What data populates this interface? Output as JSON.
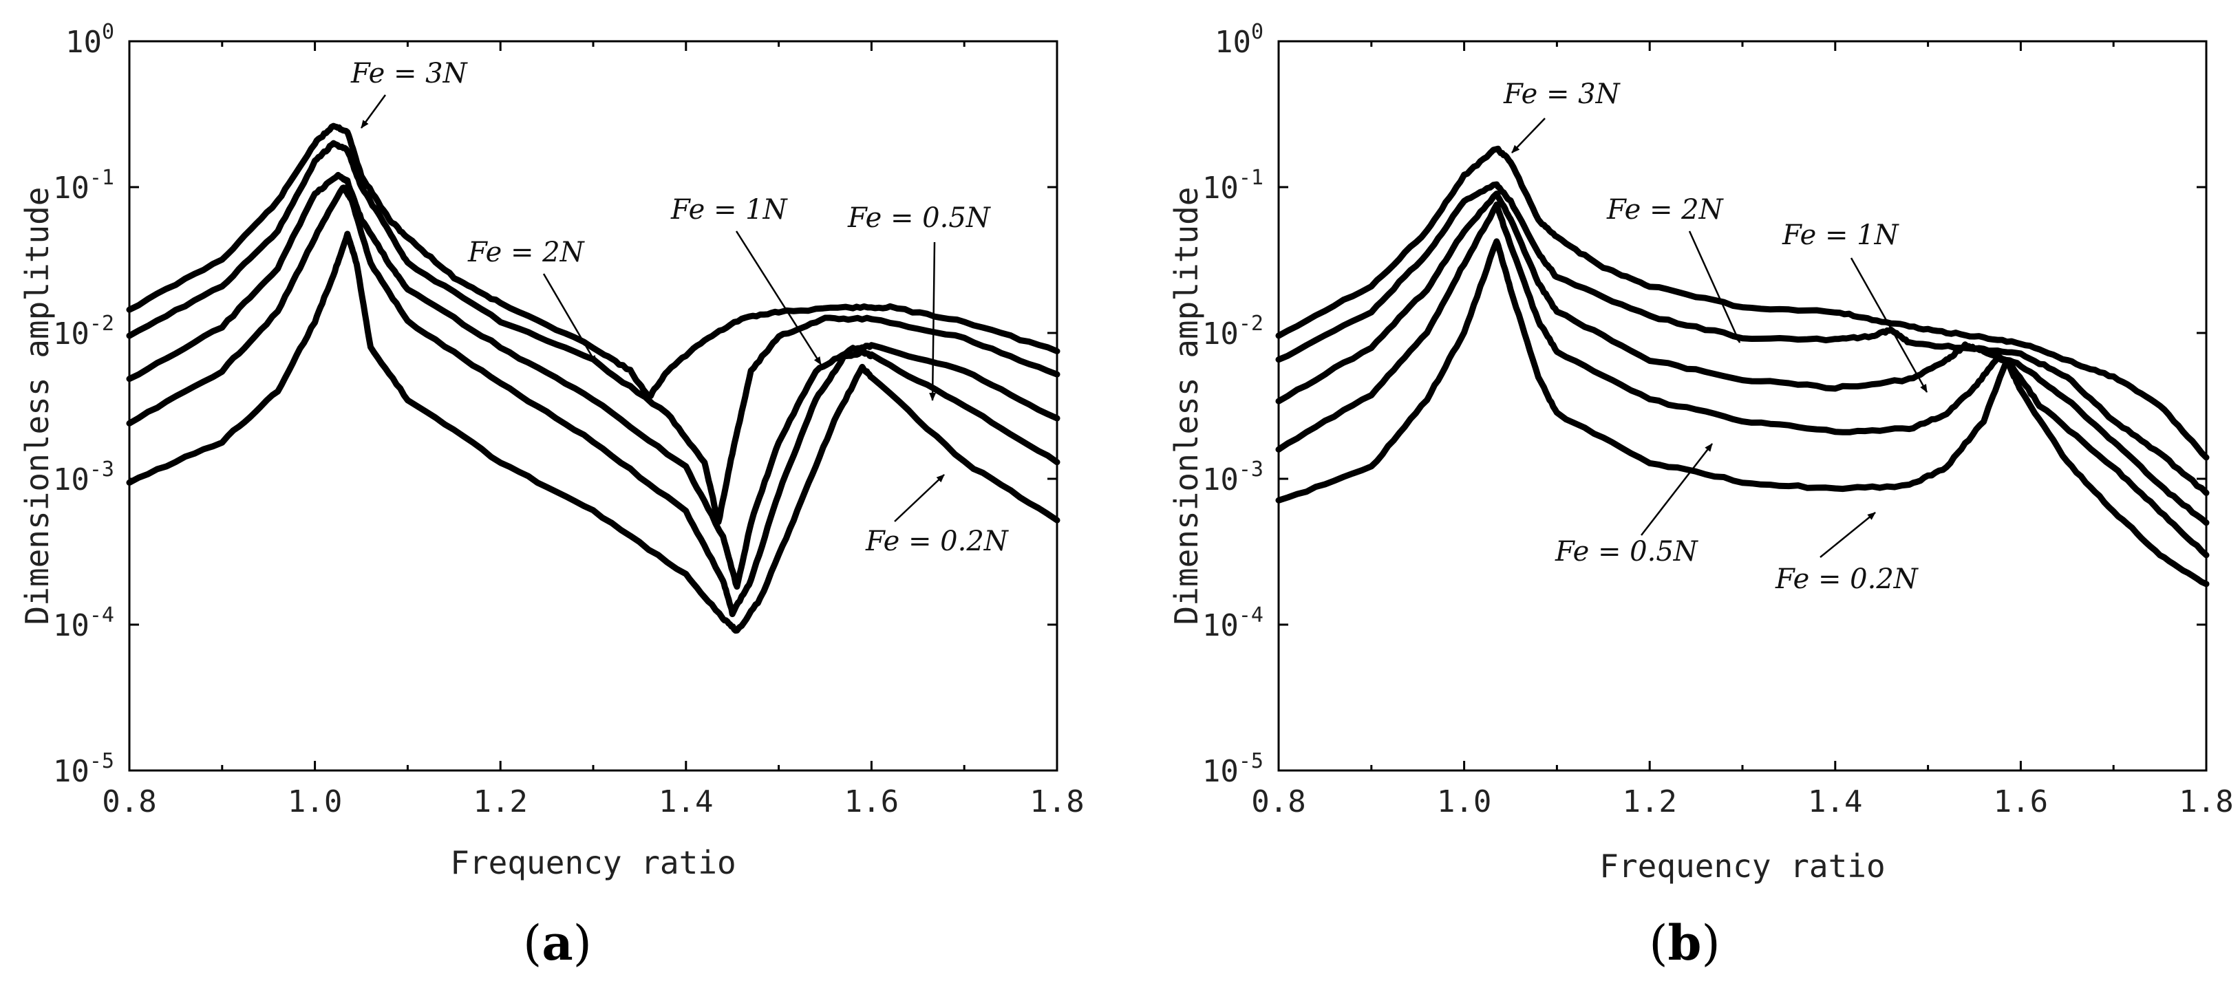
{
  "chart_data": [
    {
      "type": "line",
      "panel": "a",
      "panel_label": "a",
      "xlabel": "Frequency ratio",
      "ylabel": "Dimensionless amplitude",
      "xlim": [
        0.8,
        1.8
      ],
      "ylim_log10": [
        -5,
        0
      ],
      "yscale": "log",
      "x_ticks": [
        "0.8",
        "1.0",
        "1.2",
        "1.4",
        "1.6",
        "1.8"
      ],
      "y_ticks": [
        {
          "base": "10",
          "exp": "0"
        },
        {
          "base": "10",
          "exp": "-1"
        },
        {
          "base": "10",
          "exp": "-2"
        },
        {
          "base": "10",
          "exp": "-3"
        },
        {
          "base": "10",
          "exp": "-4"
        },
        {
          "base": "10",
          "exp": "-5"
        }
      ],
      "series": [
        {
          "name": "Fe = 3N",
          "points": [
            [
              0.8,
              0.0145
            ],
            [
              0.9,
              0.032
            ],
            [
              0.96,
              0.08
            ],
            [
              1.0,
              0.2
            ],
            [
              1.02,
              0.265
            ],
            [
              1.035,
              0.24
            ],
            [
              1.05,
              0.12
            ],
            [
              1.08,
              0.06
            ],
            [
              1.1,
              0.045
            ],
            [
              1.15,
              0.024
            ],
            [
              1.2,
              0.016
            ],
            [
              1.3,
              0.008
            ],
            [
              1.34,
              0.0055
            ],
            [
              1.36,
              0.0036
            ],
            [
              1.38,
              0.0055
            ],
            [
              1.42,
              0.009
            ],
            [
              1.46,
              0.0125
            ],
            [
              1.5,
              0.014
            ],
            [
              1.58,
              0.015
            ],
            [
              1.62,
              0.015
            ],
            [
              1.7,
              0.012
            ],
            [
              1.8,
              0.0075
            ]
          ]
        },
        {
          "name": "Fe = 2N",
          "points": [
            [
              0.8,
              0.0097
            ],
            [
              0.9,
              0.021
            ],
            [
              0.96,
              0.05
            ],
            [
              1.0,
              0.15
            ],
            [
              1.02,
              0.2
            ],
            [
              1.035,
              0.18
            ],
            [
              1.05,
              0.1
            ],
            [
              1.08,
              0.05
            ],
            [
              1.1,
              0.03
            ],
            [
              1.2,
              0.012
            ],
            [
              1.3,
              0.0065
            ],
            [
              1.38,
              0.0028
            ],
            [
              1.42,
              0.0013
            ],
            [
              1.435,
              0.0005
            ],
            [
              1.45,
              0.0015
            ],
            [
              1.47,
              0.0055
            ],
            [
              1.5,
              0.0095
            ],
            [
              1.55,
              0.0125
            ],
            [
              1.6,
              0.0125
            ],
            [
              1.7,
              0.0092
            ],
            [
              1.8,
              0.0052
            ]
          ]
        },
        {
          "name": "Fe = 1N",
          "points": [
            [
              0.8,
              0.0048
            ],
            [
              0.9,
              0.011
            ],
            [
              0.96,
              0.028
            ],
            [
              1.0,
              0.09
            ],
            [
              1.025,
              0.12
            ],
            [
              1.035,
              0.11
            ],
            [
              1.05,
              0.06
            ],
            [
              1.08,
              0.03
            ],
            [
              1.1,
              0.02
            ],
            [
              1.2,
              0.008
            ],
            [
              1.3,
              0.0035
            ],
            [
              1.4,
              0.0012
            ],
            [
              1.44,
              0.0004
            ],
            [
              1.455,
              0.00018
            ],
            [
              1.47,
              0.0005
            ],
            [
              1.5,
              0.0018
            ],
            [
              1.54,
              0.0055
            ],
            [
              1.58,
              0.0078
            ],
            [
              1.6,
              0.0082
            ],
            [
              1.7,
              0.0055
            ],
            [
              1.8,
              0.0026
            ]
          ]
        },
        {
          "name": "Fe = 0.5N",
          "points": [
            [
              0.8,
              0.0024
            ],
            [
              0.9,
              0.0055
            ],
            [
              0.96,
              0.014
            ],
            [
              1.0,
              0.045
            ],
            [
              1.03,
              0.1
            ],
            [
              1.04,
              0.08
            ],
            [
              1.06,
              0.03
            ],
            [
              1.1,
              0.012
            ],
            [
              1.2,
              0.0045
            ],
            [
              1.3,
              0.0018
            ],
            [
              1.4,
              0.0006
            ],
            [
              1.44,
              0.0002
            ],
            [
              1.45,
              0.00012
            ],
            [
              1.47,
              0.0002
            ],
            [
              1.5,
              0.0008
            ],
            [
              1.54,
              0.0035
            ],
            [
              1.57,
              0.0068
            ],
            [
              1.59,
              0.0074
            ],
            [
              1.6,
              0.007
            ],
            [
              1.7,
              0.0032
            ],
            [
              1.8,
              0.0013
            ]
          ]
        },
        {
          "name": "Fe = 0.2N",
          "points": [
            [
              0.8,
              0.00095
            ],
            [
              0.9,
              0.0018
            ],
            [
              0.96,
              0.004
            ],
            [
              1.0,
              0.012
            ],
            [
              1.02,
              0.025
            ],
            [
              1.035,
              0.048
            ],
            [
              1.045,
              0.03
            ],
            [
              1.06,
              0.008
            ],
            [
              1.1,
              0.0035
            ],
            [
              1.2,
              0.0013
            ],
            [
              1.3,
              0.0006
            ],
            [
              1.4,
              0.00022
            ],
            [
              1.44,
              0.00011
            ],
            [
              1.455,
              9e-05
            ],
            [
              1.48,
              0.00015
            ],
            [
              1.52,
              0.0006
            ],
            [
              1.56,
              0.0025
            ],
            [
              1.59,
              0.0058
            ],
            [
              1.6,
              0.005
            ],
            [
              1.7,
              0.0013
            ],
            [
              1.8,
              0.00052
            ]
          ]
        }
      ],
      "annotations": [
        {
          "text": "Fe = 3N"
        },
        {
          "text": "Fe = 2N"
        },
        {
          "text": "Fe = 1N"
        },
        {
          "text": "Fe = 0.5N"
        },
        {
          "text": "Fe = 0.2N"
        }
      ]
    },
    {
      "type": "line",
      "panel": "b",
      "panel_label": "b",
      "xlabel": "Frequency ratio",
      "ylabel": "Dimensionless amplitude",
      "xlim": [
        0.8,
        1.8
      ],
      "ylim_log10": [
        -5,
        0
      ],
      "yscale": "log",
      "x_ticks": [
        "0.8",
        "1.0",
        "1.2",
        "1.4",
        "1.6",
        "1.8"
      ],
      "y_ticks": [
        {
          "base": "10",
          "exp": "0"
        },
        {
          "base": "10",
          "exp": "-1"
        },
        {
          "base": "10",
          "exp": "-2"
        },
        {
          "base": "10",
          "exp": "-3"
        },
        {
          "base": "10",
          "exp": "-4"
        },
        {
          "base": "10",
          "exp": "-5"
        }
      ],
      "series": [
        {
          "name": "Fe = 3N",
          "points": [
            [
              0.8,
              0.0097
            ],
            [
              0.9,
              0.021
            ],
            [
              0.96,
              0.05
            ],
            [
              1.0,
              0.12
            ],
            [
              1.035,
              0.185
            ],
            [
              1.05,
              0.15
            ],
            [
              1.08,
              0.06
            ],
            [
              1.1,
              0.045
            ],
            [
              1.15,
              0.028
            ],
            [
              1.2,
              0.021
            ],
            [
              1.3,
              0.015
            ],
            [
              1.4,
              0.014
            ],
            [
              1.45,
              0.012
            ],
            [
              1.5,
              0.0105
            ],
            [
              1.55,
              0.0095
            ],
            [
              1.6,
              0.0085
            ],
            [
              1.65,
              0.0065
            ],
            [
              1.7,
              0.005
            ],
            [
              1.75,
              0.0032
            ],
            [
              1.8,
              0.0014
            ]
          ]
        },
        {
          "name": "Fe = 2N",
          "points": [
            [
              0.8,
              0.0065
            ],
            [
              0.9,
              0.014
            ],
            [
              0.96,
              0.035
            ],
            [
              1.0,
              0.08
            ],
            [
              1.035,
              0.105
            ],
            [
              1.05,
              0.08
            ],
            [
              1.08,
              0.035
            ],
            [
              1.1,
              0.024
            ],
            [
              1.2,
              0.013
            ],
            [
              1.3,
              0.0093
            ],
            [
              1.4,
              0.009
            ],
            [
              1.44,
              0.0095
            ],
            [
              1.46,
              0.0105
            ],
            [
              1.48,
              0.0085
            ],
            [
              1.55,
              0.0078
            ],
            [
              1.6,
              0.0072
            ],
            [
              1.65,
              0.005
            ],
            [
              1.7,
              0.0025
            ],
            [
              1.75,
              0.0015
            ],
            [
              1.8,
              0.0008
            ]
          ]
        },
        {
          "name": "Fe = 1N",
          "points": [
            [
              0.8,
              0.0034
            ],
            [
              0.9,
              0.008
            ],
            [
              0.96,
              0.02
            ],
            [
              1.0,
              0.05
            ],
            [
              1.035,
              0.09
            ],
            [
              1.05,
              0.06
            ],
            [
              1.08,
              0.022
            ],
            [
              1.1,
              0.014
            ],
            [
              1.2,
              0.0065
            ],
            [
              1.3,
              0.0048
            ],
            [
              1.4,
              0.0042
            ],
            [
              1.48,
              0.0048
            ],
            [
              1.52,
              0.0065
            ],
            [
              1.54,
              0.0082
            ],
            [
              1.56,
              0.0075
            ],
            [
              1.6,
              0.006
            ],
            [
              1.65,
              0.0035
            ],
            [
              1.7,
              0.0018
            ],
            [
              1.75,
              0.0009
            ],
            [
              1.8,
              0.0005
            ]
          ]
        },
        {
          "name": "Fe = 0.5N",
          "points": [
            [
              0.8,
              0.0016
            ],
            [
              0.9,
              0.0038
            ],
            [
              0.96,
              0.01
            ],
            [
              1.0,
              0.03
            ],
            [
              1.035,
              0.075
            ],
            [
              1.05,
              0.04
            ],
            [
              1.08,
              0.012
            ],
            [
              1.1,
              0.0075
            ],
            [
              1.2,
              0.0035
            ],
            [
              1.3,
              0.0025
            ],
            [
              1.4,
              0.0021
            ],
            [
              1.48,
              0.0022
            ],
            [
              1.52,
              0.0028
            ],
            [
              1.55,
              0.0042
            ],
            [
              1.575,
              0.0068
            ],
            [
              1.59,
              0.006
            ],
            [
              1.62,
              0.0032
            ],
            [
              1.7,
              0.0012
            ],
            [
              1.75,
              0.0006
            ],
            [
              1.8,
              0.0003
            ]
          ]
        },
        {
          "name": "Fe = 0.2N",
          "points": [
            [
              0.8,
              0.0007
            ],
            [
              0.9,
              0.0012
            ],
            [
              0.96,
              0.0035
            ],
            [
              1.0,
              0.01
            ],
            [
              1.035,
              0.043
            ],
            [
              1.05,
              0.02
            ],
            [
              1.08,
              0.005
            ],
            [
              1.1,
              0.0028
            ],
            [
              1.2,
              0.0013
            ],
            [
              1.3,
              0.00095
            ],
            [
              1.4,
              0.00085
            ],
            [
              1.48,
              0.0009
            ],
            [
              1.52,
              0.0012
            ],
            [
              1.56,
              0.0025
            ],
            [
              1.585,
              0.0065
            ],
            [
              1.6,
              0.004
            ],
            [
              1.65,
              0.0013
            ],
            [
              1.7,
              0.0006
            ],
            [
              1.75,
              0.0003
            ],
            [
              1.8,
              0.00019
            ]
          ]
        }
      ],
      "annotations": [
        {
          "text": "Fe = 3N"
        },
        {
          "text": "Fe = 2N"
        },
        {
          "text": "Fe = 1N"
        },
        {
          "text": "Fe = 0.5N"
        },
        {
          "text": "Fe = 0.2N"
        }
      ]
    }
  ]
}
